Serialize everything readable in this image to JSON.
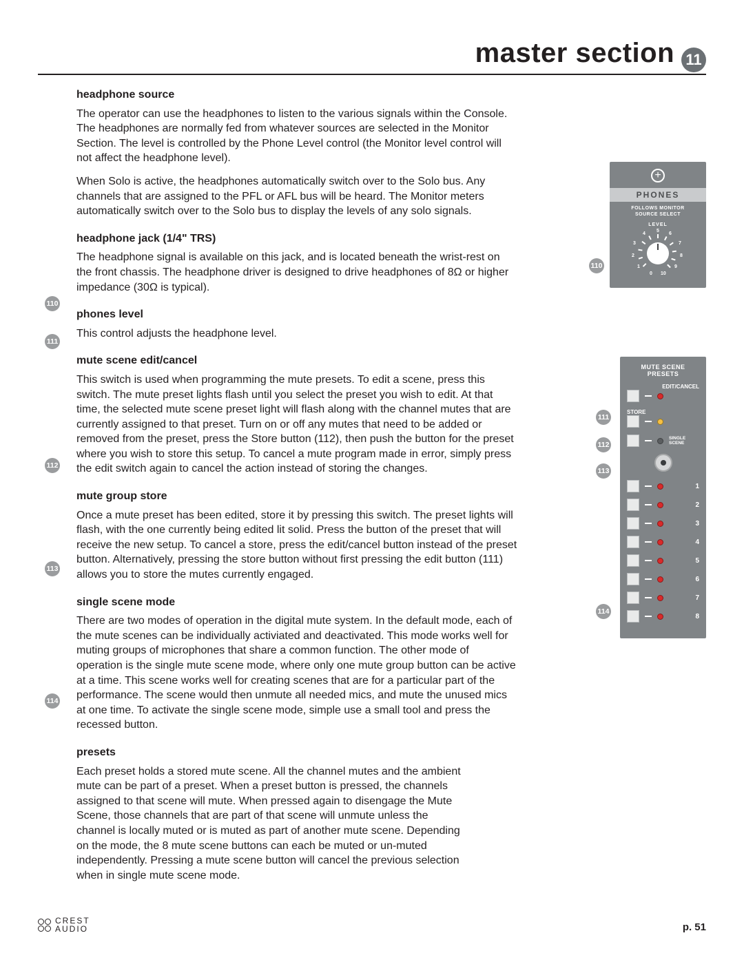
{
  "header": {
    "title": "master section",
    "chapter_badge": "11"
  },
  "sections": {
    "hp_source": {
      "title": "headphone source",
      "p1": "The operator can use the headphones to listen to the various signals within the Console. The headphones are normally fed from whatever sources are selected in the Monitor Section.  The level is controlled by the Phone Level control (the Monitor level control will not affect the headphone level).",
      "p2": "When Solo is active, the headphones automatically switch over to the Solo bus.  Any channels that are assigned to the PFL or AFL bus will be heard. The Monitor meters automatically switch over to the Solo bus to display the levels of any solo signals."
    },
    "hp_jack": {
      "title": "headphone jack  (1/4\" TRS)",
      "p1": "The headphone signal is available on this jack, and is located beneath the wrist-rest on the front chassis.  The headphone driver is designed to drive headphones of 8Ω or higher impedance (30Ω is typical)."
    },
    "phones_level": {
      "num": "110",
      "title": "phones level",
      "p1": "This control adjusts the headphone level."
    },
    "mute_edit": {
      "num": "111",
      "title": "mute scene edit/cancel",
      "p1": "This switch is used when programming the mute presets.  To edit a scene, press this switch.  The mute preset lights flash until you select the preset you wish to edit.  At that time, the selected mute scene preset light will flash along with the channel mutes that are currently assigned to that preset.   Turn on or off any mutes that need to be added or removed from the preset, press the Store button (112), then push the button for the preset where you wish to store this setup.  To cancel a mute program made in error, simply press the edit switch again to cancel the action instead of storing the changes."
    },
    "mute_store": {
      "num": "112",
      "title": "mute group store",
      "p1": "Once a mute preset has been edited, store it by pressing this switch.  The preset lights will flash, with the one currently being edited lit solid.  Press the button of the preset that will receive the new setup.  To cancel a store, press the edit/cancel button instead of the preset button.  Alternatively, pressing the store button without first pressing the edit button (111) allows you to store the mutes currently engaged."
    },
    "single_scene": {
      "num": "113",
      "title": "single scene mode",
      "p1": "There are two modes of operation in the digital mute system.  In the default mode, each of the mute scenes can be individually activiated and deactivated.  This mode works well for muting groups of microphones that share a common function. The other mode of operation is the single mute scene mode, where only one mute group button can be active at a time.  This scene works well for creating scenes that are for a particular part of the performance.  The scene would then unmute all needed mics, and mute the unused mics at one time.  To activate the single scene mode, simple use a small tool and press the recessed button."
    },
    "presets": {
      "num": "114",
      "title": "presets",
      "p1": "Each preset holds a stored mute scene.  All the channel mutes and the ambient mute can be part of a preset.  When a preset button is pressed, the channels assigned to that scene will mute.  When pressed again to disengage the Mute Scene, those channels that are part of that scene will unmute unless the channel is locally muted or is muted as part of another mute scene. Depending on the mode, the 8 mute scene buttons can each be muted or un-muted independently.  Pressing a mute scene button will cancel the previous selection when in single mute scene mode."
    }
  },
  "phones_panel": {
    "title": "PHONES",
    "sub1": "FOLLOWS MONITOR",
    "sub2": "SOURCE SELECT",
    "level_label": "LEVEL",
    "dial_numbers": [
      "0",
      "1",
      "2",
      "3",
      "4",
      "5",
      "6",
      "7",
      "8",
      "9",
      "10"
    ],
    "callout": "110",
    "colors": {
      "panel_bg": "#808487",
      "title_bg": "#c9cbcd"
    }
  },
  "mute_panel": {
    "head1": "MUTE SCENE",
    "head2": "PRESETS",
    "edit_label": "EDIT/CANCEL",
    "store_label": "STORE",
    "single_label1": "SINGLE",
    "single_label2": "SCENE",
    "preset_numbers": [
      "1",
      "2",
      "3",
      "4",
      "5",
      "6",
      "7",
      "8"
    ],
    "callouts": {
      "edit": "111",
      "store": "112",
      "single": "113",
      "presets": "114"
    },
    "led_colors": {
      "red": "#d92a2a",
      "amber": "#f6c044",
      "off": "#5b5e60"
    }
  },
  "footer": {
    "logo1": "CREST",
    "logo2": "AUDIO",
    "page": "p. 51"
  }
}
